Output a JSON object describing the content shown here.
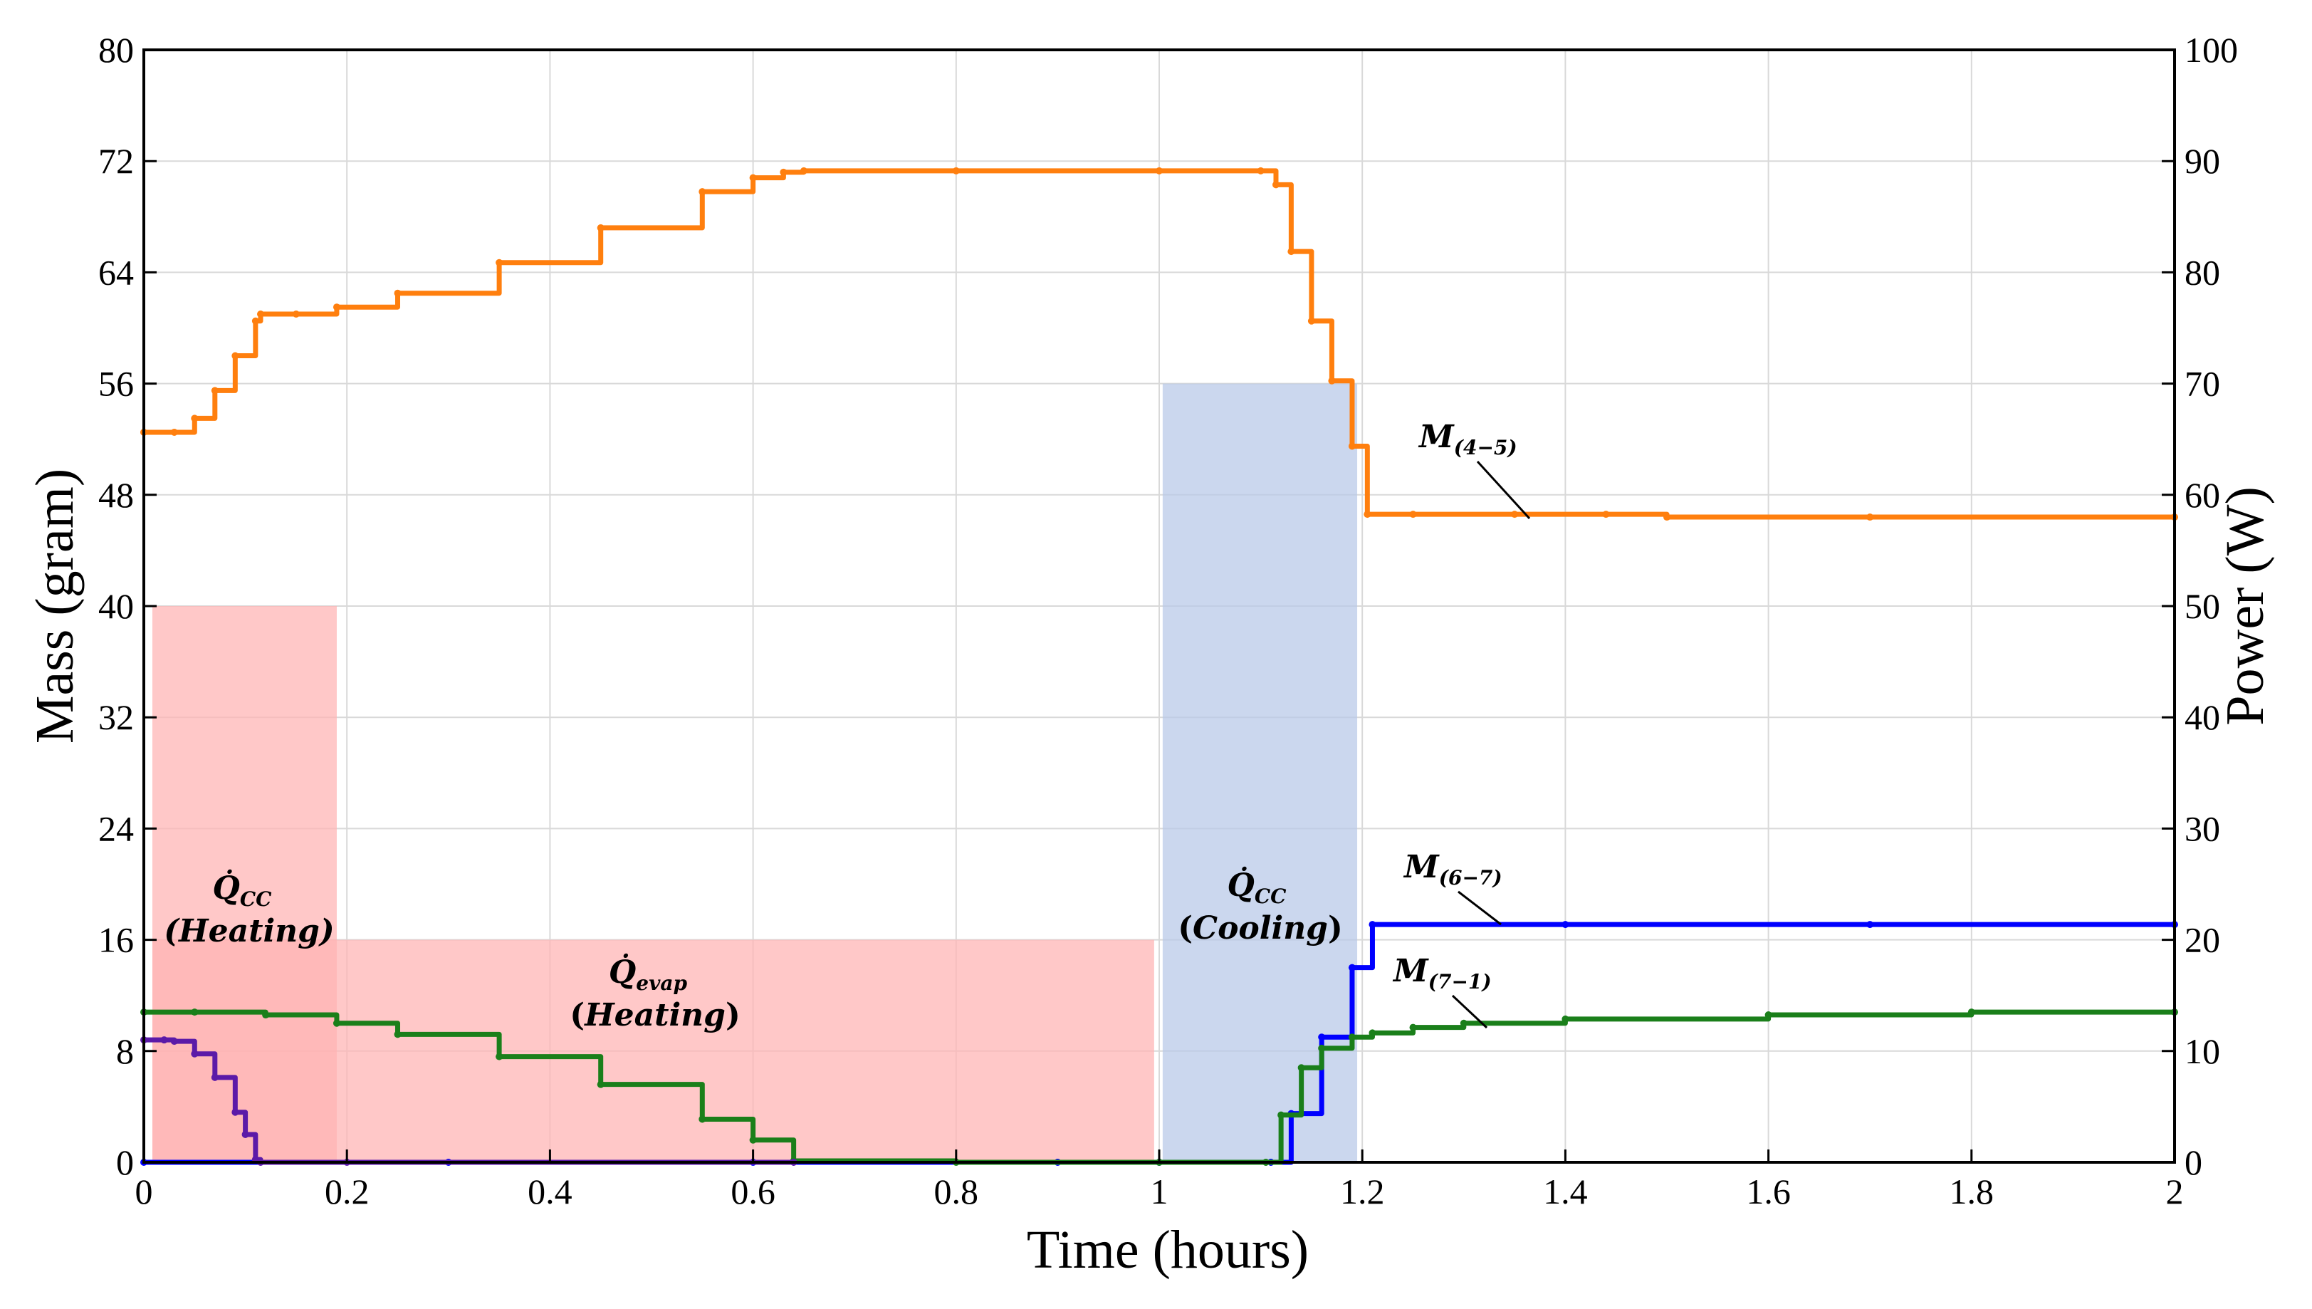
{
  "chart_data": {
    "type": "line",
    "title": "",
    "xlabel": "Time (hours)",
    "ylabel": "Mass (gram)",
    "ylabel_right": "Power (W)",
    "xlim": [
      0,
      2
    ],
    "ylim": [
      0,
      80
    ],
    "ylim_right": [
      0,
      100
    ],
    "x_ticks": [
      "0",
      "0.2",
      "0.4",
      "0.6",
      "0.8",
      "1",
      "1.2",
      "1.4",
      "1.6",
      "1.8",
      "2"
    ],
    "y_ticks": [
      "0",
      "8",
      "16",
      "24",
      "32",
      "40",
      "48",
      "56",
      "64",
      "72",
      "80"
    ],
    "y_ticks_right": [
      "0",
      "10",
      "20",
      "30",
      "40",
      "50",
      "60",
      "70",
      "80",
      "90",
      "100"
    ],
    "grid": true,
    "colors": {
      "m45": "#ff7f0e",
      "m67": "#0000ff",
      "m71": "#1a7f1a",
      "heating": "#ffb3b3",
      "cooling": "#b7c8e8",
      "purple": "#5b1aa8"
    },
    "series": [
      {
        "name": "M(4-5)",
        "color": "#ff7f0e",
        "x": [
          0,
          0.03,
          0.05,
          0.07,
          0.09,
          0.11,
          0.115,
          0.15,
          0.19,
          0.25,
          0.35,
          0.45,
          0.55,
          0.6,
          0.63,
          0.65,
          0.8,
          1.0,
          1.1,
          1.115,
          1.13,
          1.15,
          1.17,
          1.19,
          1.205,
          1.25,
          1.35,
          1.44,
          1.5,
          1.7,
          2.0
        ],
        "y": [
          52.5,
          52.5,
          53.5,
          55.5,
          58.0,
          60.5,
          61.0,
          61.0,
          61.5,
          62.5,
          64.7,
          67.2,
          69.8,
          70.8,
          71.2,
          71.3,
          71.3,
          71.3,
          71.3,
          70.3,
          65.5,
          60.5,
          56.2,
          51.5,
          46.6,
          46.6,
          46.6,
          46.6,
          46.4,
          46.4,
          46.4
        ]
      },
      {
        "name": "M(6-7)",
        "color": "#0000ff",
        "x": [
          0,
          0.3,
          0.6,
          0.9,
          1.0,
          1.11,
          1.13,
          1.16,
          1.19,
          1.21,
          1.4,
          1.7,
          2.0
        ],
        "y": [
          0,
          0,
          0,
          0,
          0,
          0,
          3.5,
          9.0,
          14.0,
          17.1,
          17.1,
          17.1,
          17.1
        ]
      },
      {
        "name": "M(7-1)",
        "color": "#1a7f1a",
        "x": [
          0,
          0.05,
          0.12,
          0.19,
          0.25,
          0.35,
          0.45,
          0.55,
          0.6,
          0.64,
          0.8,
          1.0,
          1.105,
          1.12,
          1.14,
          1.16,
          1.19,
          1.21,
          1.25,
          1.3,
          1.4,
          1.6,
          1.8,
          2.0
        ],
        "y": [
          10.8,
          10.8,
          10.6,
          10.0,
          9.2,
          7.6,
          5.6,
          3.1,
          1.6,
          0.1,
          0,
          0,
          0,
          3.4,
          6.8,
          8.2,
          9.0,
          9.3,
          9.7,
          10.0,
          10.3,
          10.6,
          10.8,
          10.8
        ]
      },
      {
        "name": "purple",
        "color": "#5b1aa8",
        "x": [
          0,
          0.02,
          0.03,
          0.05,
          0.07,
          0.09,
          0.1,
          0.11,
          0.115,
          0.2,
          0.64
        ],
        "y": [
          8.8,
          8.8,
          8.7,
          7.8,
          6.1,
          3.6,
          2.0,
          0.2,
          0,
          0,
          0
        ]
      }
    ],
    "regions": [
      {
        "name": "Q_cc heating",
        "x0": 0,
        "x1": 0.19,
        "power": 50,
        "color": "#ffb3b3"
      },
      {
        "name": "Q_evap heating",
        "x0": 0,
        "x1": 0.995,
        "power": 20,
        "color": "#ffb3b3"
      },
      {
        "name": "Q_cc cooling",
        "x0": 0.995,
        "x1": 1.195,
        "power": 70,
        "color": "#b7c8e8"
      }
    ],
    "annotations": {
      "qcc_heating_symbol": "Q̇",
      "qcc_heating_sub": "CC",
      "qcc_heating_mode": "(Heating)",
      "qevap_symbol": "Q̇",
      "qevap_sub": "evap",
      "qevap_mode_open": "(",
      "qevap_mode": "Heating",
      "qevap_mode_close": ")",
      "qcc_cooling_symbol": "Q̇",
      "qcc_cooling_sub": "CC",
      "qcc_cooling_mode_open": "(",
      "qcc_cooling_mode": "Cooling",
      "qcc_cooling_mode_close": ")",
      "m45_symbol": "M",
      "m45_sub": "(4−5)",
      "m67_symbol": "M",
      "m67_sub": "(6−7)",
      "m71_symbol": "M",
      "m71_sub": "(7−1)"
    }
  }
}
